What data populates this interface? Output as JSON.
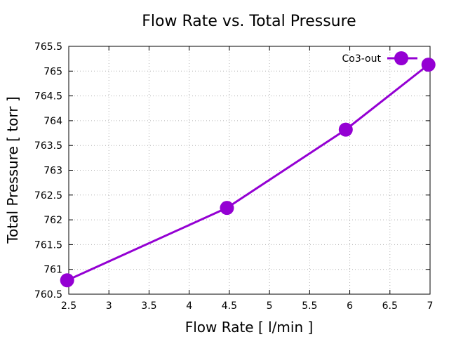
{
  "chart_data": {
    "type": "line",
    "title": "Flow Rate vs. Total Pressure",
    "xlabel": "Flow Rate [ l/min ]",
    "ylabel": "Total Pressure [ torr ]",
    "xlim": [
      2.5,
      7
    ],
    "ylim": [
      760.5,
      765.5
    ],
    "xticks": [
      "2.5",
      "3",
      "3.5",
      "4",
      "4.5",
      "5",
      "5.5",
      "6",
      "6.5",
      "7"
    ],
    "yticks": [
      "760.5",
      "761",
      "761.5",
      "762",
      "762.5",
      "763",
      "763.5",
      "764",
      "764.5",
      "765",
      "765.5"
    ],
    "grid": true,
    "legend_position": "top-right",
    "series": [
      {
        "name": "Co3-out",
        "color": "#9400d3",
        "marker": "circle",
        "x": [
          2.48,
          4.47,
          5.95,
          6.98
        ],
        "y": [
          760.78,
          762.24,
          763.82,
          765.13
        ]
      }
    ]
  }
}
